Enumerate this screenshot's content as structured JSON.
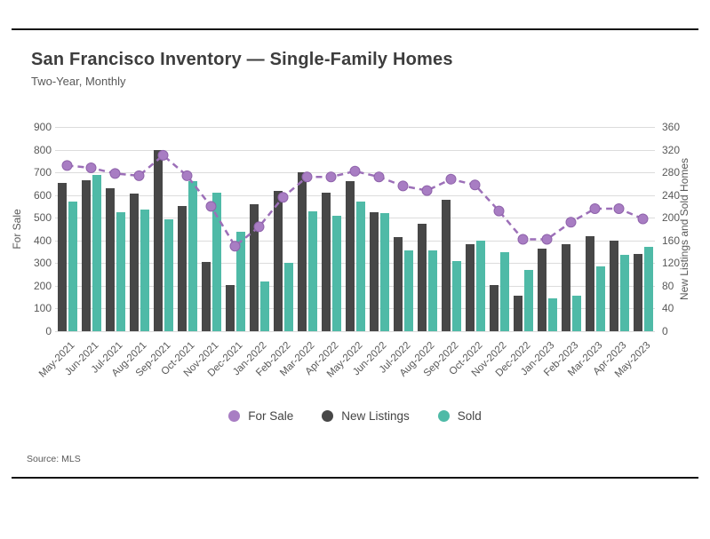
{
  "header": {
    "title": "San Francisco Inventory — Single-Family Homes",
    "subtitle": "Two-Year, Monthly"
  },
  "source": "Source: MLS",
  "colors": {
    "for_sale_line": "#9c6fb8",
    "for_sale_marker": "#a87dc3",
    "for_sale_marker_edge": "#8f63ab",
    "new_listings_bar": "#474747",
    "sold_bar": "#4fbaa7",
    "grid": "#dcdcdc",
    "frame_rule": "#141414",
    "tick_text": "#595959"
  },
  "legend": [
    {
      "label": "For Sale",
      "color": "#a87dc3"
    },
    {
      "label": "New Listings",
      "color": "#474747"
    },
    {
      "label": "Sold",
      "color": "#4fbaa7"
    }
  ],
  "chart_data": {
    "type": "bar",
    "subtype": "combo-bar-line",
    "title": "San Francisco Inventory — Single-Family Homes",
    "subtitle": "Two-Year, Monthly",
    "grid": true,
    "legend_position": "bottom",
    "categories": [
      "May-2021",
      "Jun-2021",
      "Jul-2021",
      "Aug-2021",
      "Sep-2021",
      "Oct-2021",
      "Nov-2021",
      "Dec-2021",
      "Jan-2022",
      "Feb-2022",
      "Mar-2022",
      "Apr-2022",
      "May-2022",
      "Jun-2022",
      "Jul-2022",
      "Aug-2022",
      "Sep-2022",
      "Oct-2022",
      "Nov-2022",
      "Dec-2022",
      "Jan-2023",
      "Feb-2023",
      "Mar-2023",
      "Apr-2023",
      "May-2023"
    ],
    "axes": {
      "left": {
        "label": "For Sale",
        "min": 0,
        "max": 900,
        "step": 100
      },
      "right": {
        "label": "New Listings and Sold Homes",
        "min": 0,
        "max": 360,
        "step": 40
      }
    },
    "series": [
      {
        "name": "For Sale",
        "type": "line",
        "axis": "left",
        "color": "#9c6fb8",
        "values": [
          730,
          720,
          695,
          685,
          775,
          685,
          550,
          375,
          460,
          590,
          680,
          680,
          705,
          680,
          640,
          620,
          670,
          645,
          530,
          405,
          405,
          480,
          540,
          540,
          495
        ]
      },
      {
        "name": "New Listings",
        "type": "bar",
        "axis": "right",
        "color": "#474747",
        "values": [
          262,
          266,
          252,
          242,
          320,
          220,
          122,
          82,
          224,
          248,
          280,
          244,
          264,
          210,
          166,
          190,
          232,
          154,
          82,
          62,
          146,
          154,
          168,
          160,
          136
        ]
      },
      {
        "name": "Sold",
        "type": "bar",
        "axis": "right",
        "color": "#4fbaa7",
        "values": [
          228,
          276,
          210,
          214,
          198,
          264,
          244,
          176,
          88,
          120,
          212,
          204,
          228,
          208,
          142,
          142,
          124,
          160,
          140,
          108,
          58,
          62,
          114,
          134,
          148
        ]
      }
    ]
  }
}
